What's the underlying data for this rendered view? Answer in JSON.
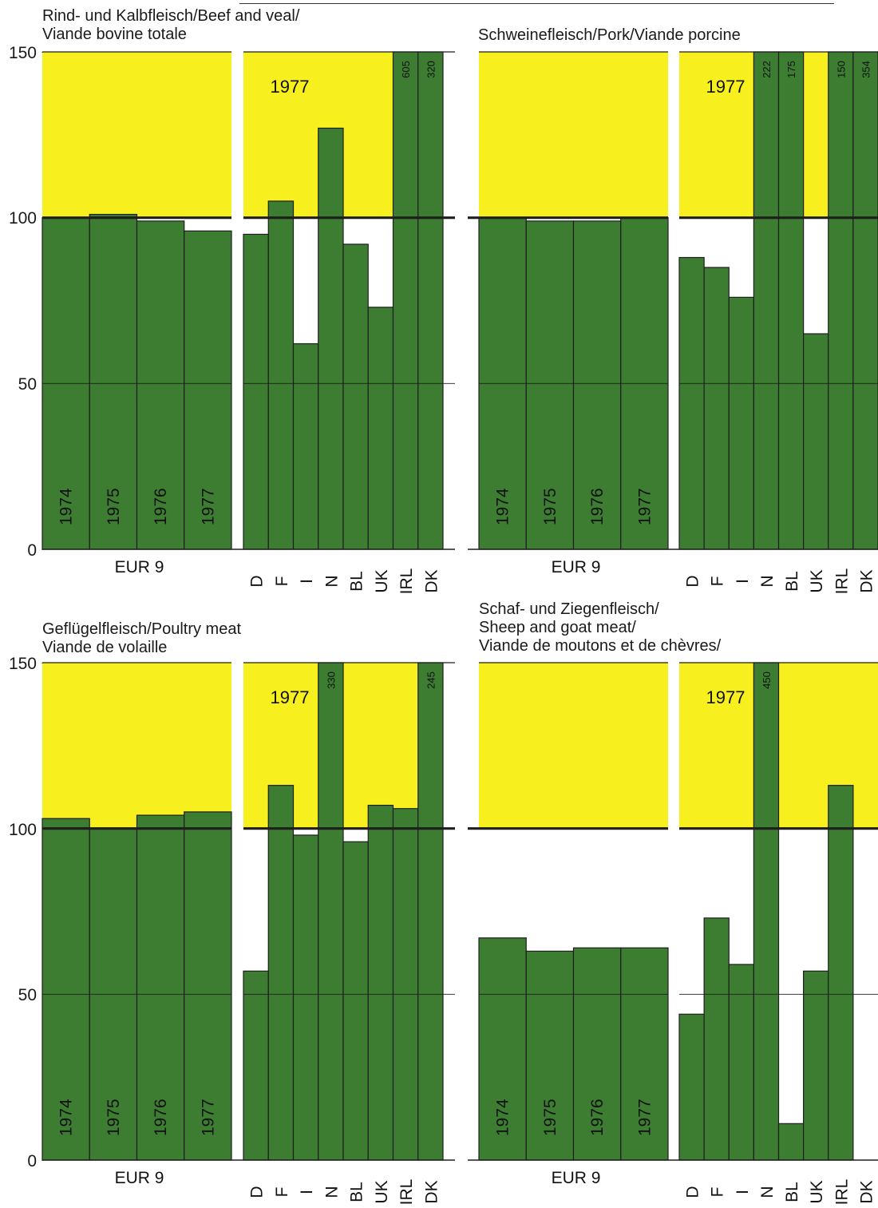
{
  "colors": {
    "surplus": "#f7f01e",
    "production": "#3c7d32",
    "deficit": "#ffffff",
    "frame": "#1e1e1e"
  },
  "chart_data": [
    {
      "type": "bar",
      "title_lines": [
        "Rind- und Kalbfleisch/Beef and veal/",
        "Viande bovine totale"
      ],
      "ylim": [
        0,
        150
      ],
      "yticks": [
        0,
        50,
        100,
        150
      ],
      "eur_label": "EUR 9",
      "eur_years": [
        "1974",
        "1975",
        "1976",
        "1977"
      ],
      "eur_values": [
        100,
        101,
        99,
        96
      ],
      "country_year_label": "1977",
      "countries": [
        "D",
        "F",
        "I",
        "N",
        "BL",
        "UK",
        "IRL",
        "DK"
      ],
      "country_values": [
        95,
        105,
        62,
        127,
        92,
        73,
        605,
        320
      ],
      "country_value_labels": [
        "",
        "",
        "",
        "",
        "",
        "",
        "605",
        "320"
      ]
    },
    {
      "type": "bar",
      "title_lines": [
        "Schweinefleisch/Pork/Viande porcine"
      ],
      "ylim": [
        0,
        150
      ],
      "yticks": [
        0,
        50,
        100,
        150
      ],
      "eur_label": "EUR 9",
      "eur_years": [
        "1974",
        "1975",
        "1976",
        "1977"
      ],
      "eur_values": [
        100,
        99,
        99,
        100
      ],
      "country_year_label": "1977",
      "countries": [
        "D",
        "F",
        "I",
        "N",
        "BL",
        "UK",
        "IRL",
        "DK"
      ],
      "country_values": [
        88,
        85,
        76,
        222,
        175,
        65,
        150,
        354
      ],
      "country_value_labels": [
        "",
        "",
        "",
        "222",
        "175",
        "",
        "150",
        "354"
      ]
    },
    {
      "type": "bar",
      "title_lines": [
        "Geflügelfleisch/Poultry meat",
        "Viande de volaille"
      ],
      "ylim": [
        0,
        150
      ],
      "yticks": [
        0,
        50,
        100,
        150
      ],
      "eur_label": "EUR 9",
      "eur_years": [
        "1974",
        "1975",
        "1976",
        "1977"
      ],
      "eur_values": [
        103,
        100,
        104,
        105
      ],
      "country_year_label": "1977",
      "countries": [
        "D",
        "F",
        "I",
        "N",
        "BL",
        "UK",
        "IRL",
        "DK"
      ],
      "country_values": [
        57,
        113,
        98,
        330,
        96,
        107,
        106,
        245
      ],
      "country_value_labels": [
        "",
        "",
        "",
        "330",
        "",
        "",
        "",
        "245"
      ]
    },
    {
      "type": "bar",
      "title_lines": [
        "Schaf- und Ziegenfleisch/",
        "Sheep and goat meat/",
        "Viande de moutons et de chèvres/"
      ],
      "ylim": [
        0,
        150
      ],
      "yticks": [
        0,
        50,
        100,
        150
      ],
      "eur_label": "EUR 9",
      "eur_years": [
        "1974",
        "1975",
        "1976",
        "1977"
      ],
      "eur_values": [
        67,
        63,
        64,
        64
      ],
      "country_year_label": "1977",
      "countries": [
        "D",
        "F",
        "I",
        "N",
        "BL",
        "UK",
        "IRL",
        "DK"
      ],
      "country_values": [
        44,
        73,
        59,
        450,
        11,
        57,
        113,
        0
      ],
      "country_value_labels": [
        "",
        "",
        "",
        "450",
        "",
        "",
        "",
        ""
      ]
    }
  ]
}
